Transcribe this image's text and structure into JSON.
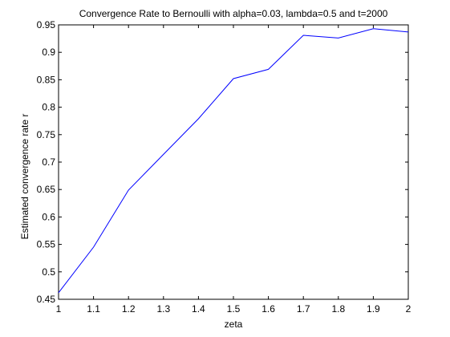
{
  "chart_data": {
    "type": "line",
    "title": "Convergence Rate to Bernoulli with alpha=0.03, lambda=0.5 and t=2000",
    "xlabel": "zeta",
    "ylabel": "Estimated convergence rate r",
    "xlim": [
      1,
      2
    ],
    "ylim": [
      0.45,
      0.95
    ],
    "xticks": [
      1,
      1.1,
      1.2,
      1.3,
      1.4,
      1.5,
      1.6,
      1.7,
      1.8,
      1.9,
      2
    ],
    "xtick_labels": [
      "1",
      "1.1",
      "1.2",
      "1.3",
      "1.4",
      "1.5",
      "1.6",
      "1.7",
      "1.8",
      "1.9",
      "2"
    ],
    "yticks": [
      0.45,
      0.5,
      0.55,
      0.6,
      0.65,
      0.7,
      0.75,
      0.8,
      0.85,
      0.9,
      0.95
    ],
    "ytick_labels": [
      "0.45",
      "0.5",
      "0.55",
      "0.6",
      "0.65",
      "0.7",
      "0.75",
      "0.8",
      "0.85",
      "0.9",
      "0.95"
    ],
    "grid": false,
    "series": [
      {
        "color": "#0000ff",
        "x": [
          1,
          1.1,
          1.2,
          1.3,
          1.4,
          1.5,
          1.6,
          1.7,
          1.8,
          1.9,
          2
        ],
        "y": [
          0.462,
          0.545,
          0.649,
          0.714,
          0.779,
          0.852,
          0.869,
          0.931,
          0.926,
          0.943,
          0.937
        ]
      }
    ]
  }
}
